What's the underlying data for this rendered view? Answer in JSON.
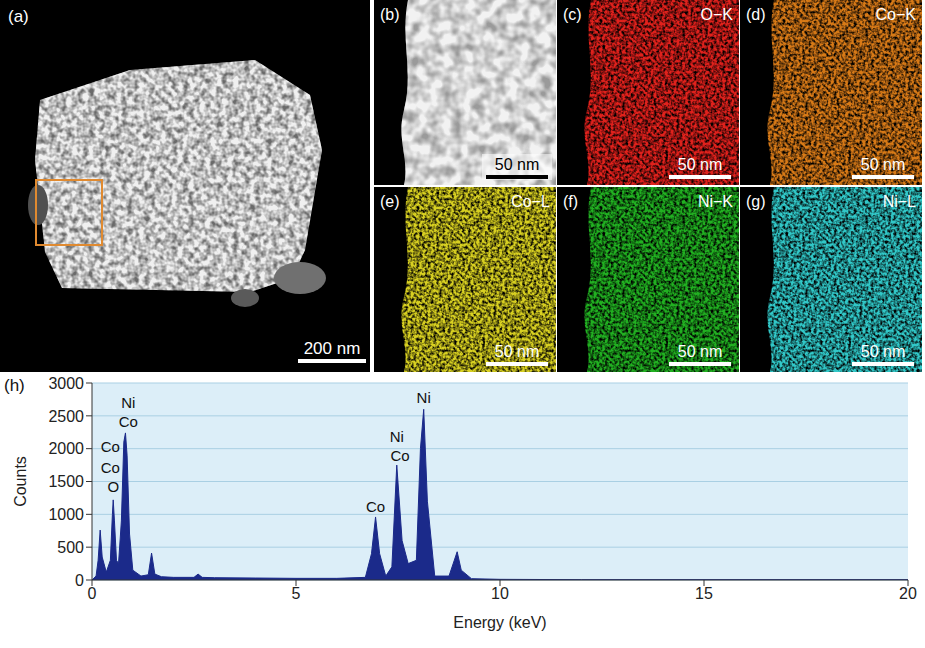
{
  "panels": [
    {
      "letter": "(a)",
      "scale_bar": "200 nm"
    },
    {
      "letter": "(b)",
      "scale_bar": "50 nm"
    },
    {
      "letter": "(c)",
      "label": "O−K",
      "scale_bar": "50 nm",
      "color": "#e0201c"
    },
    {
      "letter": "(d)",
      "label": "Co−K",
      "scale_bar": "50 nm",
      "color": "#d87a18"
    },
    {
      "letter": "(e)",
      "label": "Co−L",
      "scale_bar": "50 nm",
      "color": "#d8d020"
    },
    {
      "letter": "(f)",
      "label": "Ni−K",
      "scale_bar": "50 nm",
      "color": "#20b020"
    },
    {
      "letter": "(g)",
      "label": "Ni−L",
      "scale_bar": "50 nm",
      "color": "#30c8c8"
    }
  ],
  "chart_data": {
    "type": "area",
    "title": "(h)",
    "x_label": "Energy (keV)",
    "y_label": "Counts",
    "x": [
      0,
      0.1,
      0.15,
      0.2,
      0.25,
      0.35,
      0.45,
      0.5,
      0.52,
      0.55,
      0.6,
      0.65,
      0.72,
      0.78,
      0.82,
      0.86,
      0.92,
      1.0,
      1.2,
      1.38,
      1.46,
      1.54,
      1.7,
      2.0,
      2.5,
      2.6,
      2.7,
      3,
      4,
      5,
      6,
      6.7,
      6.85,
      6.95,
      7.05,
      7.2,
      7.35,
      7.47,
      7.6,
      7.75,
      7.95,
      8.05,
      8.13,
      8.22,
      8.4,
      8.75,
      8.88,
      8.95,
      9.05,
      9.3,
      10,
      12,
      15,
      20
    ],
    "values": [
      0,
      60,
      300,
      760,
      350,
      120,
      300,
      1000,
      1220,
      900,
      300,
      250,
      900,
      2100,
      2240,
      1900,
      700,
      150,
      60,
      80,
      410,
      90,
      50,
      40,
      40,
      90,
      40,
      35,
      30,
      25,
      25,
      40,
      400,
      960,
      400,
      60,
      200,
      1750,
      600,
      250,
      300,
      2000,
      2600,
      1200,
      60,
      60,
      300,
      430,
      150,
      20,
      10,
      5,
      5,
      5
    ],
    "color": "#1b2a8a",
    "xlim": [
      0,
      20
    ],
    "xticks": [
      0,
      5,
      10,
      15,
      20
    ],
    "ylim": [
      0,
      3000
    ],
    "yticks": [
      0,
      500,
      1000,
      1500,
      2000,
      2500,
      3000
    ],
    "grid": true,
    "annotations": [
      {
        "text": "Ni",
        "x": 0.89,
        "y": 2700
      },
      {
        "text": "Co",
        "x": 0.89,
        "y": 2420
      },
      {
        "text": "Co",
        "x": 0.45,
        "y": 2040
      },
      {
        "text": "Co",
        "x": 0.45,
        "y": 1720
      },
      {
        "text": "O",
        "x": 0.52,
        "y": 1420
      },
      {
        "text": "Co",
        "x": 6.95,
        "y": 1120
      },
      {
        "text": "Ni",
        "x": 7.47,
        "y": 2180
      },
      {
        "text": "Co",
        "x": 7.55,
        "y": 1900
      },
      {
        "text": "Ni",
        "x": 8.13,
        "y": 2780
      }
    ]
  }
}
